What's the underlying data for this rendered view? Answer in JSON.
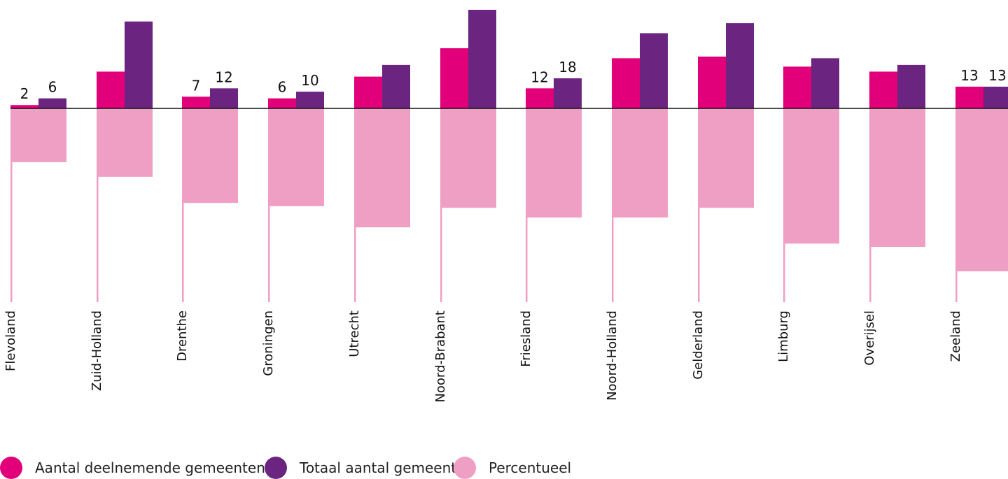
{
  "chart_data": {
    "type": "bar",
    "categories": [
      "Flevoland",
      "Zuid-Holland",
      "Drenthe",
      "Groningen",
      "Utrecht",
      "Noord-Brabant",
      "Friesland",
      "Noord-Holland",
      "Gelderland",
      "Limburg",
      "Overijsel",
      "Zeeland"
    ],
    "series": [
      {
        "name": "Aantal deelnemende gemeenten",
        "values": [
          2,
          22,
          7,
          6,
          19,
          36,
          12,
          30,
          31,
          25,
          22,
          13
        ],
        "color": "#e2007a"
      },
      {
        "name": "Totaal aantal gemeenten",
        "values": [
          6,
          52,
          12,
          10,
          26,
          59,
          18,
          45,
          51,
          30,
          26,
          13
        ],
        "color": "#6b247f"
      },
      {
        "name": "Percentueel",
        "values": [
          33,
          42,
          58,
          60,
          73,
          61,
          67,
          67,
          61,
          83,
          85,
          100
        ],
        "color": "#f09fc4"
      }
    ],
    "data_labels": [
      {
        "category": "Flevoland",
        "values": [
          "2",
          "6"
        ]
      },
      {
        "category": "Drenthe",
        "values": [
          "7",
          "12"
        ]
      },
      {
        "category": "Groningen",
        "values": [
          "6",
          "10"
        ]
      },
      {
        "category": "Friesland",
        "values": [
          "12",
          "18"
        ]
      },
      {
        "category": "Zeeland",
        "values": [
          "13",
          "13"
        ]
      }
    ],
    "legend_position": "bottom-left",
    "grid": false
  }
}
